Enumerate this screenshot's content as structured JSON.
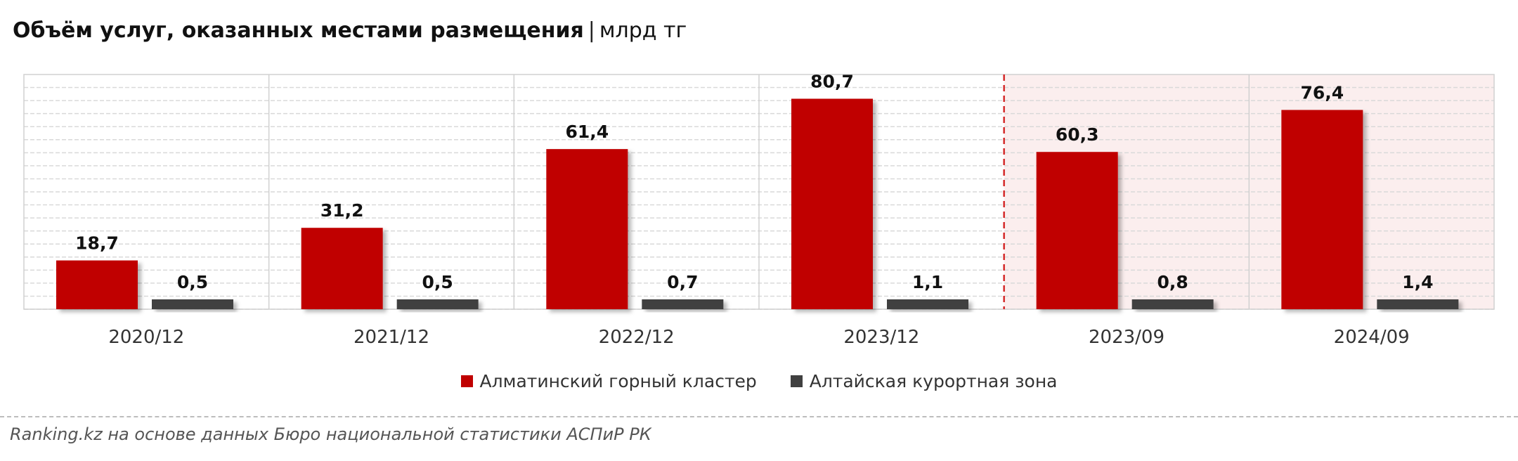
{
  "title": "Объём услуг, оказанных местами размещения",
  "title_separator": "|",
  "unit": "млрд тг",
  "colors": {
    "series1": "#c00000",
    "series2": "#404040",
    "highlight_bg": "#fbeeee",
    "divider": "#d42a2a"
  },
  "chart_data": {
    "type": "bar",
    "categories": [
      "2020/12",
      "2021/12",
      "2022/12",
      "2023/12",
      "2023/09",
      "2024/09"
    ],
    "series": [
      {
        "name": "Алматинский горный кластер",
        "values": [
          18.7,
          31.2,
          61.4,
          80.7,
          60.3,
          76.4
        ],
        "labels": [
          "18,7",
          "31,2",
          "61,4",
          "80,7",
          "60,3",
          "76,4"
        ]
      },
      {
        "name": "Алтайская курортная зона",
        "values": [
          0.5,
          0.5,
          0.7,
          1.1,
          0.8,
          1.4
        ],
        "labels": [
          "0,5",
          "0,5",
          "0,7",
          "1,1",
          "0,8",
          "1,4"
        ]
      }
    ],
    "ylim": [
      0,
      90
    ],
    "grid": true,
    "highlighted_categories": [
      "2023/09",
      "2024/09"
    ],
    "legend_position": "bottom"
  },
  "source": "Ranking.kz на основе данных Бюро национальной статистики АСПиР РК"
}
